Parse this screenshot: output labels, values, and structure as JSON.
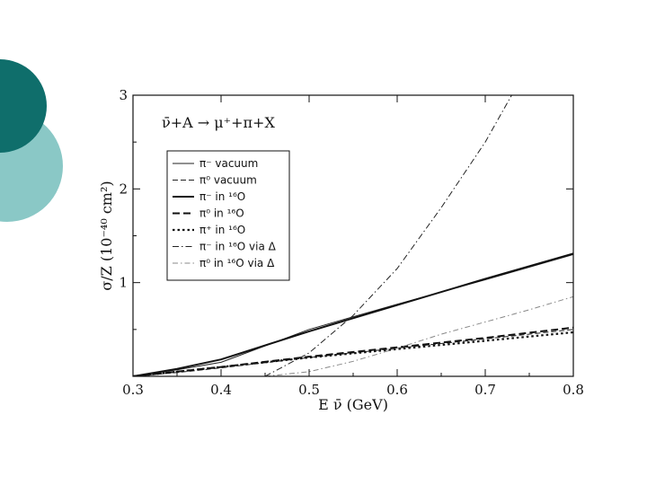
{
  "slide": {
    "colors": {
      "circle_dark": "#0f6e6b",
      "circle_light": "#8ac8c6"
    }
  },
  "chart_data": {
    "type": "line",
    "title": "",
    "annotation": "ν̄+A → μ⁺+π+X",
    "xlabel": "E ν̄ (GeV)",
    "ylabel": "σ/Z (10⁻⁴⁰ cm²)",
    "xlim": [
      0.3,
      0.8
    ],
    "ylim": [
      0,
      3
    ],
    "x_ticks": [
      "0.3",
      "0.4",
      "0.5",
      "0.6",
      "0.7",
      "0.8"
    ],
    "y_ticks": [
      "1",
      "2",
      "3"
    ],
    "grid": false,
    "legend_position": "upper-left",
    "series": [
      {
        "name": "π⁻ vacuum",
        "style": "solid-thin",
        "x": [
          0.3,
          0.35,
          0.4,
          0.5,
          0.6,
          0.7,
          0.8
        ],
        "y": [
          0.0,
          0.07,
          0.15,
          0.5,
          0.77,
          1.03,
          1.3
        ]
      },
      {
        "name": "π⁰ vacuum",
        "style": "dashed-thin",
        "x": [
          0.3,
          0.35,
          0.4,
          0.5,
          0.6,
          0.7,
          0.8
        ],
        "y": [
          0.0,
          0.04,
          0.09,
          0.2,
          0.3,
          0.4,
          0.5
        ]
      },
      {
        "name": "π⁻ in ¹⁶O",
        "style": "solid-thick",
        "x": [
          0.3,
          0.35,
          0.4,
          0.5,
          0.6,
          0.7,
          0.8
        ],
        "y": [
          0.0,
          0.08,
          0.18,
          0.48,
          0.76,
          1.04,
          1.31
        ]
      },
      {
        "name": "π⁰ in ¹⁶O",
        "style": "dashed-thick",
        "x": [
          0.3,
          0.35,
          0.4,
          0.5,
          0.6,
          0.7,
          0.8
        ],
        "y": [
          0.0,
          0.05,
          0.1,
          0.21,
          0.31,
          0.41,
          0.52
        ]
      },
      {
        "name": "π⁺ in ¹⁶O",
        "style": "dotted-thick",
        "x": [
          0.3,
          0.35,
          0.4,
          0.5,
          0.6,
          0.7,
          0.8
        ],
        "y": [
          0.0,
          0.05,
          0.1,
          0.2,
          0.29,
          0.38,
          0.47
        ]
      },
      {
        "name": "π⁻ in ¹⁶O via Δ",
        "style": "dashdot-thin",
        "x": [
          0.45,
          0.5,
          0.55,
          0.6,
          0.65,
          0.7,
          0.73
        ],
        "y": [
          0.0,
          0.25,
          0.65,
          1.15,
          1.8,
          2.5,
          3.0
        ]
      },
      {
        "name": "π⁰ in ¹⁶O via Δ",
        "style": "dashdot-light",
        "x": [
          0.45,
          0.5,
          0.55,
          0.6,
          0.65,
          0.7,
          0.75,
          0.8
        ],
        "y": [
          0.0,
          0.05,
          0.16,
          0.3,
          0.45,
          0.58,
          0.71,
          0.85
        ]
      }
    ]
  }
}
